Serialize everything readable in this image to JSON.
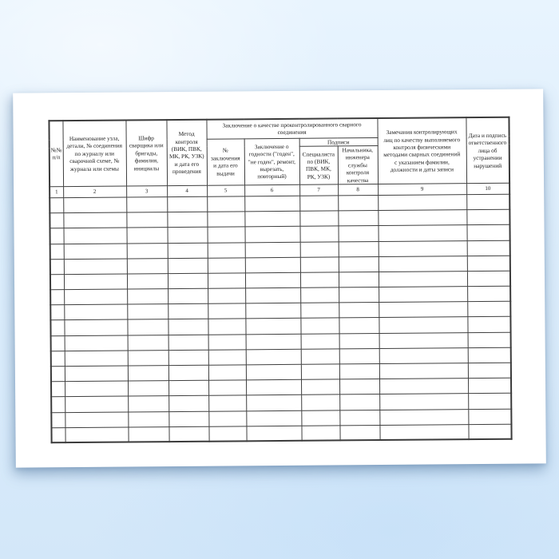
{
  "page": {
    "background_top_color": "#e8f4fe",
    "background_bottom_color": "#d3e7f9",
    "paper_color": "#ffffff",
    "line_color": "#3b3b3b"
  },
  "table": {
    "group_header": "Заключение о качестве проконтролированного сварного\nсоединения",
    "signatures_header": "Подписи",
    "columns": [
      {
        "num": "1",
        "header": "№№\nп/п"
      },
      {
        "num": "2",
        "header": "Наименование узла,\nдетали, № соединения\nпо журналу или\nсварочной схеме, №\nжурнала или схемы"
      },
      {
        "num": "3",
        "header": "Шифр\nсварщика или\nбригады,\nфамилия,\nинициалы"
      },
      {
        "num": "4",
        "header": "Метод\nконтроля\n(ВИК, ПВК,\nМК, РК, УЗК)\nи дата его\nпроведения"
      },
      {
        "num": "5",
        "header": "№\nзаключения\nи дата его\nвыдачи"
      },
      {
        "num": "6",
        "header": "Заключение о\nгодности (\"годен\",\n\"не годен\", ремонт,\nвырезать,\nповторный)"
      },
      {
        "num": "7",
        "header": "Специалиста\nпо (ВИК,\nПВК, МК,\nРК, УЗК)"
      },
      {
        "num": "8",
        "header": "Начальника,\nинженера\nслужбы\nконтроля\nкачества"
      },
      {
        "num": "9",
        "header": "Замечания контролирующих\nлиц по качеству выполняемого\nконтроля физическими\nметодами сварных соединений\nс указанием фамилии,\nдолжности и даты записи"
      },
      {
        "num": "10",
        "header": "Дата и подпись\nответственного\nлица об\nустранении\nнарушений"
      }
    ],
    "data_row_count": 16,
    "data_column_count": 10
  }
}
